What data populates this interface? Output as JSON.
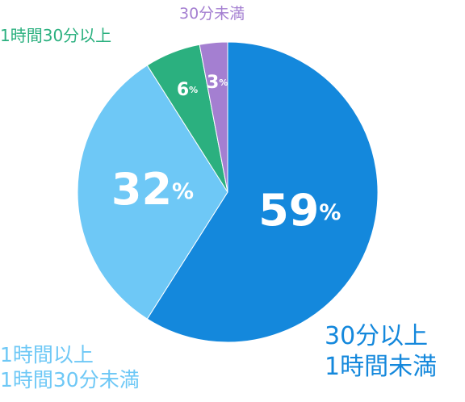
{
  "chart_data": {
    "type": "pie",
    "categories": [
      "30分以上\n1時間未満",
      "1時間以上\n1時間30分未満",
      "1時間30分以上",
      "30分未満"
    ],
    "values": [
      59,
      32,
      6,
      3
    ],
    "value_labels": [
      "59%",
      "32%",
      "6%",
      "3%"
    ],
    "colors": [
      "#1488dc",
      "#6ec8f6",
      "#2bb07f",
      "#a47fd1"
    ],
    "start_angle": 0,
    "direction": "clockwise"
  }
}
